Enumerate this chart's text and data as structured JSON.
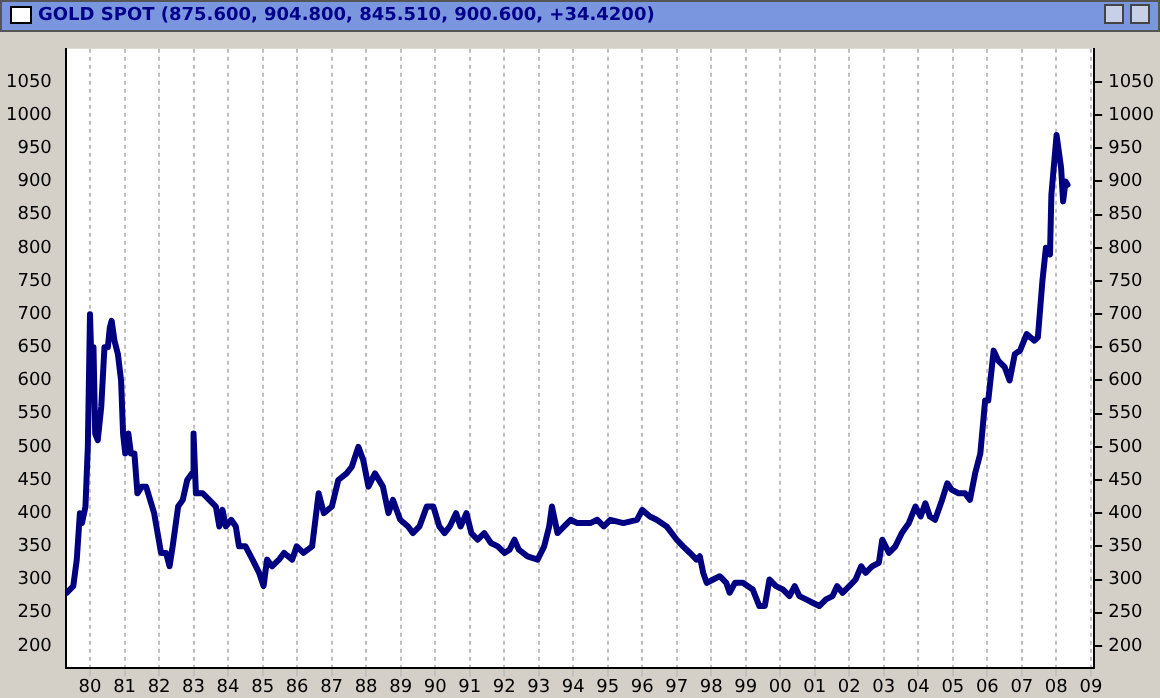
{
  "chart_data": {
    "type": "line",
    "title": "GOLD SPOT (875.600, 904.800, 845.510, 900.600, +34.4200)",
    "x": [
      "1979-04-29",
      "1979-07-08",
      "1979-08-14",
      "1979-09-16",
      "1979-10-08",
      "1979-11-14",
      "1979-12-09",
      "1980-01-01",
      "1980-01-22",
      "1980-02-07",
      "1980-02-25",
      "1980-03-23",
      "1980-04-29",
      "1980-06-02",
      "1980-07-08",
      "1980-07-29",
      "1980-08-17",
      "1980-09-16",
      "1980-10-22",
      "1980-11-25",
      "1980-12-16",
      "1981-01-08",
      "1981-02-10",
      "1981-03-09",
      "1981-04-15",
      "1981-05-17",
      "1981-07-01",
      "1981-08-17",
      "1981-11-10",
      "1982-01-22",
      "1982-03-16",
      "1982-04-22",
      "1982-05-25",
      "1982-07-22",
      "1982-09-09",
      "1982-10-26",
      "1982-12-16",
      "1983-01-01",
      "1983-01-26",
      "1983-04-08",
      "1983-06-16",
      "1983-08-25",
      "1983-10-01",
      "1983-11-03",
      "1983-12-09",
      "1984-02-03",
      "1984-03-23",
      "1984-04-26",
      "1984-07-04",
      "1984-09-16",
      "1984-11-25",
      "1985-01-11",
      "1985-02-17",
      "1985-04-11",
      "1985-06-23",
      "1985-08-17",
      "1985-11-10",
      "1985-12-27",
      "1986-03-09",
      "1986-06-09",
      "1986-08-17",
      "1986-10-11",
      "1987-01-04",
      "1987-03-13",
      "1987-06-09",
      "1987-08-03",
      "1987-10-11",
      "1987-12-02",
      "1988-01-26",
      "1988-04-04",
      "1988-06-27",
      "1988-08-25",
      "1988-10-11",
      "1988-12-27",
      "1989-03-20",
      "1989-05-10",
      "1989-07-19",
      "1989-10-04",
      "1989-12-13",
      "1990-02-14",
      "1990-04-11",
      "1990-06-05",
      "1990-08-10",
      "1990-09-27",
      "1990-11-28",
      "1991-01-19",
      "1991-03-27",
      "1991-06-05",
      "1991-08-14",
      "1991-10-26",
      "1992-01-04",
      "1992-02-28",
      "1992-04-19",
      "1992-06-05",
      "1992-09-05",
      "1992-12-20",
      "1993-02-28",
      "1993-04-22",
      "1993-05-21",
      "1993-07-19",
      "1993-09-27",
      "1993-12-05",
      "1994-02-14",
      "1994-07-01",
      "1994-09-13",
      "1994-11-21",
      "1995-01-29",
      "1995-06-16",
      "1995-11-07",
      "1996-01-01",
      "1996-03-23",
      "1996-06-02",
      "1996-09-16",
      "1997-01-01",
      "1997-03-09",
      "1997-05-21",
      "1997-07-29",
      "1997-09-02",
      "1997-10-08",
      "1997-11-14",
      "1998-01-22",
      "1998-04-01",
      "1998-06-09",
      "1998-07-15",
      "1998-09-09",
      "1998-12-02",
      "1999-03-16",
      "1999-05-25",
      "1999-07-22",
      "1999-09-09",
      "1999-11-17",
      "2000-01-29",
      "2000-04-08",
      "2000-06-02",
      "2000-07-22",
      "2000-10-01",
      "2000-12-09",
      "2001-02-17",
      "2001-04-29",
      "2001-07-08",
      "2001-08-25",
      "2001-10-22",
      "2002-01-01",
      "2002-03-09",
      "2002-05-07",
      "2002-06-23",
      "2002-09-02",
      "2002-11-10",
      "2002-12-16",
      "2003-02-25",
      "2003-05-03",
      "2003-07-11",
      "2003-09-23",
      "2003-12-02",
      "2004-01-26",
      "2004-03-16",
      "2004-05-03",
      "2004-06-27",
      "2004-09-09",
      "2004-11-03",
      "2004-12-23",
      "2005-03-02",
      "2005-05-10",
      "2005-07-01",
      "2005-08-25",
      "2005-10-19",
      "2005-12-09",
      "2006-01-11",
      "2006-03-09",
      "2006-04-26",
      "2006-07-04",
      "2006-08-25",
      "2006-10-19",
      "2006-12-13",
      "2007-02-21",
      "2007-05-14",
      "2007-06-20",
      "2007-08-07",
      "2007-09-13",
      "2007-10-26",
      "2007-11-10",
      "2008-01-04",
      "2008-02-21",
      "2008-03-13",
      "2008-04-08",
      "2008-04-29"
    ],
    "series": [
      {
        "color": "#000080",
        "values": [
          280,
          290,
          330,
          400,
          385,
          410,
          500,
          700,
          600,
          650,
          520,
          510,
          560,
          650,
          650,
          680,
          690,
          660,
          640,
          600,
          520,
          490,
          520,
          490,
          490,
          430,
          440,
          440,
          400,
          340,
          340,
          320,
          350,
          410,
          420,
          450,
          460,
          520,
          430,
          430,
          420,
          410,
          380,
          405,
          380,
          390,
          380,
          350,
          350,
          330,
          310,
          290,
          330,
          320,
          330,
          340,
          330,
          350,
          340,
          350,
          430,
          400,
          410,
          450,
          460,
          470,
          500,
          480,
          440,
          460,
          440,
          400,
          420,
          390,
          380,
          370,
          380,
          410,
          410,
          380,
          370,
          380,
          400,
          380,
          400,
          370,
          360,
          370,
          355,
          350,
          340,
          345,
          360,
          345,
          335,
          330,
          350,
          380,
          410,
          370,
          380,
          390,
          385,
          385,
          390,
          380,
          390,
          385,
          390,
          405,
          395,
          390,
          380,
          360,
          350,
          340,
          330,
          335,
          310,
          295,
          300,
          305,
          295,
          280,
          295,
          295,
          285,
          260,
          260,
          300,
          290,
          285,
          275,
          290,
          275,
          270,
          265,
          260,
          270,
          275,
          290,
          280,
          290,
          300,
          320,
          310,
          320,
          325,
          360,
          340,
          350,
          370,
          385,
          410,
          395,
          415,
          395,
          390,
          420,
          445,
          435,
          430,
          430,
          420,
          460,
          490,
          570,
          570,
          645,
          630,
          620,
          600,
          640,
          645,
          670,
          660,
          665,
          750,
          800,
          790,
          880,
          970,
          920,
          870,
          900,
          895
        ]
      }
    ],
    "xlim": [
      "1979-04-20",
      "2009-02-05"
    ],
    "xticks": [
      {
        "value": "1980",
        "label": "80"
      },
      {
        "value": "1981",
        "label": "81"
      },
      {
        "value": "1982",
        "label": "82"
      },
      {
        "value": "1983",
        "label": "83"
      },
      {
        "value": "1984",
        "label": "84"
      },
      {
        "value": "1985",
        "label": "85"
      },
      {
        "value": "1986",
        "label": "86"
      },
      {
        "value": "1987",
        "label": "87"
      },
      {
        "value": "1988",
        "label": "88"
      },
      {
        "value": "1989",
        "label": "89"
      },
      {
        "value": "1990",
        "label": "90"
      },
      {
        "value": "1991",
        "label": "91"
      },
      {
        "value": "1992",
        "label": "92"
      },
      {
        "value": "1993",
        "label": "93"
      },
      {
        "value": "1994",
        "label": "94"
      },
      {
        "value": "1995",
        "label": "95"
      },
      {
        "value": "1996",
        "label": "96"
      },
      {
        "value": "1997",
        "label": "97"
      },
      {
        "value": "1998",
        "label": "98"
      },
      {
        "value": "1999",
        "label": "99"
      },
      {
        "value": "2000",
        "label": "00"
      },
      {
        "value": "2001",
        "label": "01"
      },
      {
        "value": "2002",
        "label": "02"
      },
      {
        "value": "2003",
        "label": "03"
      },
      {
        "value": "2004",
        "label": "04"
      },
      {
        "value": "2005",
        "label": "05"
      },
      {
        "value": "2006",
        "label": "06"
      },
      {
        "value": "2007",
        "label": "07"
      },
      {
        "value": "2008",
        "label": "08"
      },
      {
        "value": "2009",
        "label": "09"
      }
    ],
    "ylim": [
      166,
      1100
    ],
    "yticks": [
      200,
      250,
      300,
      350,
      400,
      450,
      500,
      550,
      600,
      650,
      700,
      750,
      800,
      850,
      900,
      950,
      1000,
      1050
    ],
    "y2lim": [
      166,
      1100
    ],
    "y2ticks": [
      200,
      250,
      300,
      350,
      400,
      450,
      500,
      550,
      600,
      650,
      700,
      750,
      800,
      850,
      900,
      950,
      1000,
      1050
    ],
    "grid": "x",
    "marker": "none",
    "line_style": "solid"
  }
}
